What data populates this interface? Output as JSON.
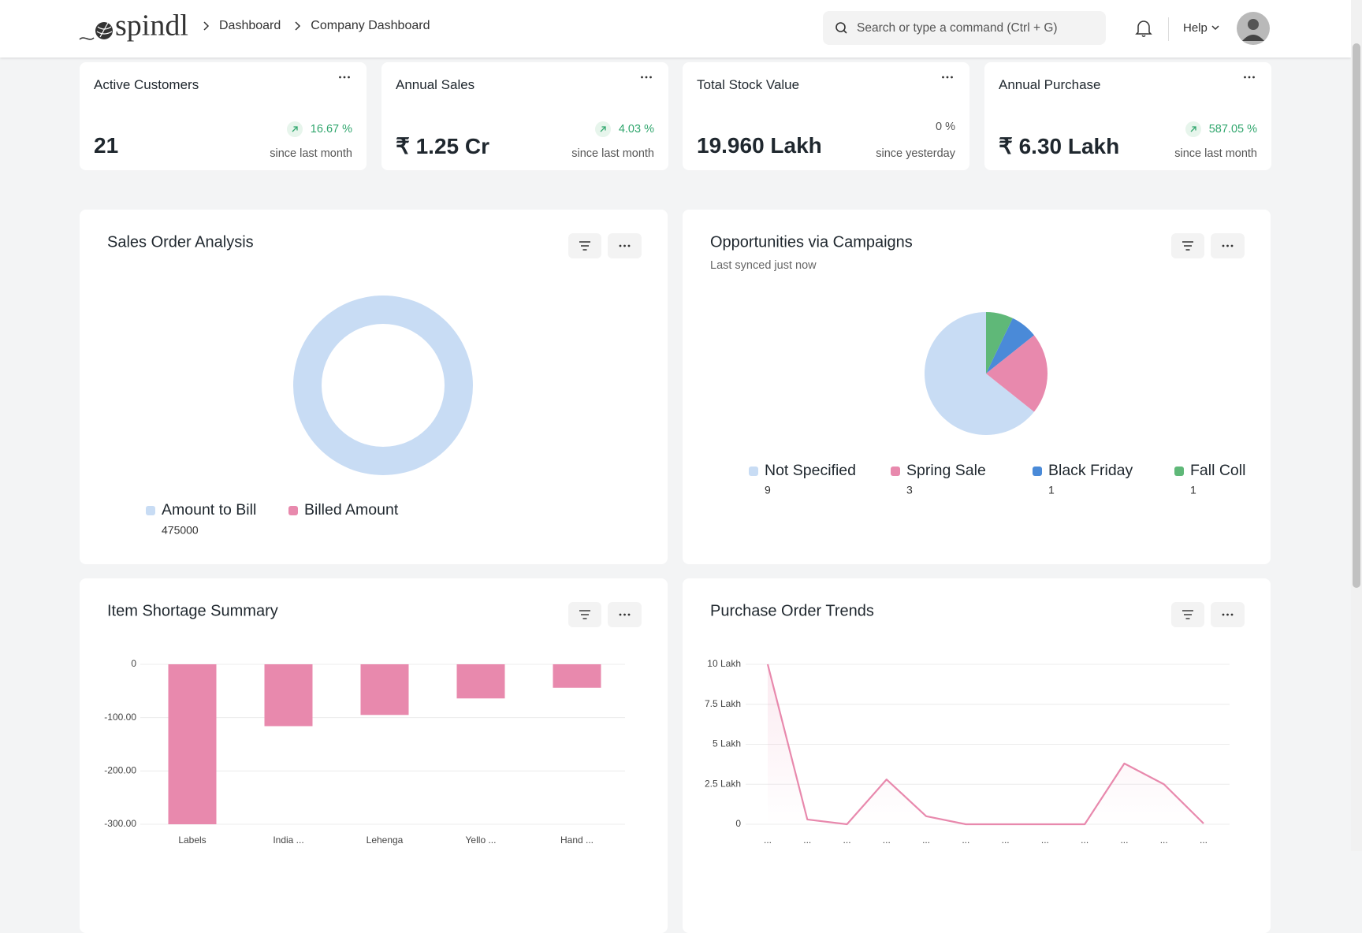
{
  "header": {
    "logo": "spindl",
    "breadcrumbs": [
      "Dashboard",
      "Company Dashboard"
    ],
    "search_placeholder": "Search or type a command (Ctrl + G)",
    "help": "Help"
  },
  "kpis": [
    {
      "title": "Active Customers",
      "value": "21",
      "change": "16.67 %",
      "note": "since last month",
      "trend": "up"
    },
    {
      "title": "Annual Sales",
      "value": "₹ 1.25 Cr",
      "change": "4.03 %",
      "note": "since last month",
      "trend": "up"
    },
    {
      "title": "Total Stock Value",
      "value": "19.960 Lakh",
      "change": "0 %",
      "note": "since yesterday"
    },
    {
      "title": "Annual Purchase",
      "value": "₹ 6.30 Lakh",
      "change": "587.05 %",
      "note": "since last month",
      "trend": "up"
    }
  ],
  "chart_data": [
    {
      "type": "donut",
      "title": "Sales Order Analysis",
      "categories": [
        "Amount to Bill",
        "Billed Amount"
      ],
      "values": [
        475000,
        0
      ],
      "colors": [
        "#c8dcf4",
        "#e889ad"
      ]
    },
    {
      "type": "pie",
      "title": "Opportunities via Campaigns",
      "subtitle": "Last synced just now",
      "categories": [
        "Not Specified",
        "Spring Sale",
        "Black Friday",
        "Fall Coll"
      ],
      "values": [
        9,
        3,
        1,
        1
      ],
      "colors": [
        "#c8dcf4",
        "#e889ad",
        "#4a8ad8",
        "#5fb878"
      ]
    },
    {
      "type": "bar",
      "title": "Item Shortage Summary",
      "categories": [
        "Labels",
        "India ...",
        "Lehenga",
        "Yello ...",
        "Hand ..."
      ],
      "values": [
        -300,
        -116,
        -95,
        -64,
        -44
      ],
      "color": "#e889ad",
      "ylim": [
        -300,
        0
      ],
      "yticks": [
        0,
        {
          "value": -100,
          "label": "-100.00"
        },
        {
          "value": -200,
          "label": "-200.00"
        },
        {
          "value": -300,
          "label": "-300.00"
        }
      ],
      "grid": true
    },
    {
      "type": "line",
      "title": "Purchase Order Trends",
      "categories": [
        "...",
        "...",
        "...",
        "...",
        "...",
        "...",
        "...",
        "...",
        "...",
        "...",
        "...",
        "..."
      ],
      "values": [
        10,
        0.3,
        0,
        2.8,
        0.5,
        0,
        0,
        0,
        0,
        3.8,
        2.5,
        0.05
      ],
      "color": "#e889ad",
      "ylim": [
        0,
        10
      ],
      "yticks": [
        0,
        {
          "value": 2.5,
          "label": "2.5 Lakh"
        },
        {
          "value": 5,
          "label": "5 Lakh"
        },
        {
          "value": 7.5,
          "label": "7.5 Lakh"
        },
        {
          "value": 10,
          "label": "10 Lakh"
        }
      ],
      "grid": true
    }
  ]
}
